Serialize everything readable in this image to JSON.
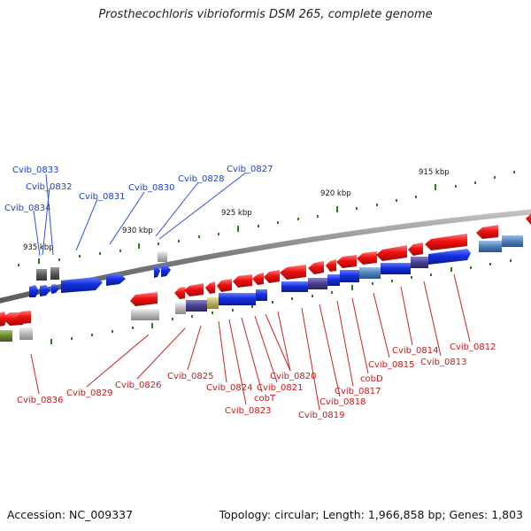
{
  "title": "Prosthecochloris vibrioformis DSM 265, complete genome",
  "footer": {
    "accession": "Accession: NC_009337",
    "topology": "Topology: circular; Length: 1,966,858 bp; Genes: 1,803"
  },
  "colors": {
    "forward_gene": "#1430e0",
    "reverse_gene": "#f01010",
    "backbone": "#8a8a8a",
    "label_forward": "#1a3fd6",
    "label_reverse": "#c8191b",
    "tick": "#2f7a1f"
  },
  "kbp_labels": [
    "935 kbp",
    "930 kbp",
    "925 kbp",
    "920 kbp",
    "915 kbp"
  ],
  "gene_labels": {
    "forward": [
      "Cvib_0833",
      "Cvib_0832",
      "Cvib_0834",
      "Cvib_0831",
      "Cvib_0830",
      "Cvib_0828",
      "Cvib_0827"
    ],
    "reverse": [
      "Cvib_0836",
      "Cvib_0829",
      "Cvib_0826",
      "Cvib_0825",
      "Cvib_0824",
      "Cvib_0823",
      "cobT",
      "Cvib_0821",
      "Cvib_0820",
      "Cvib_0819",
      "Cvib_0818",
      "Cvib_0817",
      "cobD",
      "Cvib_0815",
      "Cvib_0814",
      "Cvib_0813",
      "Cvib_0812"
    ]
  }
}
